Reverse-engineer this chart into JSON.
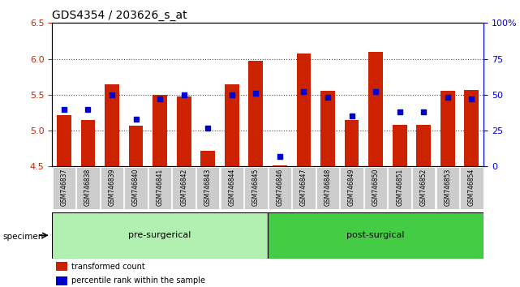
{
  "title": "GDS4354 / 203626_s_at",
  "samples": [
    "GSM746837",
    "GSM746838",
    "GSM746839",
    "GSM746840",
    "GSM746841",
    "GSM746842",
    "GSM746843",
    "GSM746844",
    "GSM746845",
    "GSM746846",
    "GSM746847",
    "GSM746848",
    "GSM746849",
    "GSM746850",
    "GSM746851",
    "GSM746852",
    "GSM746853",
    "GSM746854"
  ],
  "bar_values": [
    5.22,
    5.15,
    5.65,
    5.07,
    5.5,
    5.48,
    4.72,
    5.65,
    5.97,
    4.52,
    6.07,
    5.55,
    5.15,
    6.1,
    5.08,
    5.08,
    5.55,
    5.57
  ],
  "percentile_values": [
    40,
    40,
    50,
    33,
    47,
    50,
    27,
    50,
    51,
    7,
    52,
    48,
    35,
    52,
    38,
    38,
    48,
    47
  ],
  "groups": [
    {
      "label": "pre-surgerical",
      "start": 0,
      "end": 9,
      "color": "#b2f0b2"
    },
    {
      "label": "post-surgical",
      "start": 9,
      "end": 18,
      "color": "#44cc44"
    }
  ],
  "ylim_left": [
    4.5,
    6.5
  ],
  "ylim_right": [
    0,
    100
  ],
  "yticks_left": [
    4.5,
    5.0,
    5.5,
    6.0,
    6.5
  ],
  "yticks_right": [
    0,
    25,
    50,
    75,
    100
  ],
  "ytick_labels_right": [
    "0",
    "25",
    "50",
    "75",
    "100%"
  ],
  "bar_color": "#cc2200",
  "dot_color": "#0000cc",
  "bar_bottom": 4.5,
  "bar_width": 0.6,
  "specimen_label": "specimen",
  "legend_items": [
    {
      "color": "#cc2200",
      "label": "transformed count"
    },
    {
      "color": "#0000cc",
      "label": "percentile rank within the sample"
    }
  ],
  "left_axis_color": "#cc2200",
  "right_axis_color": "#0000cc"
}
